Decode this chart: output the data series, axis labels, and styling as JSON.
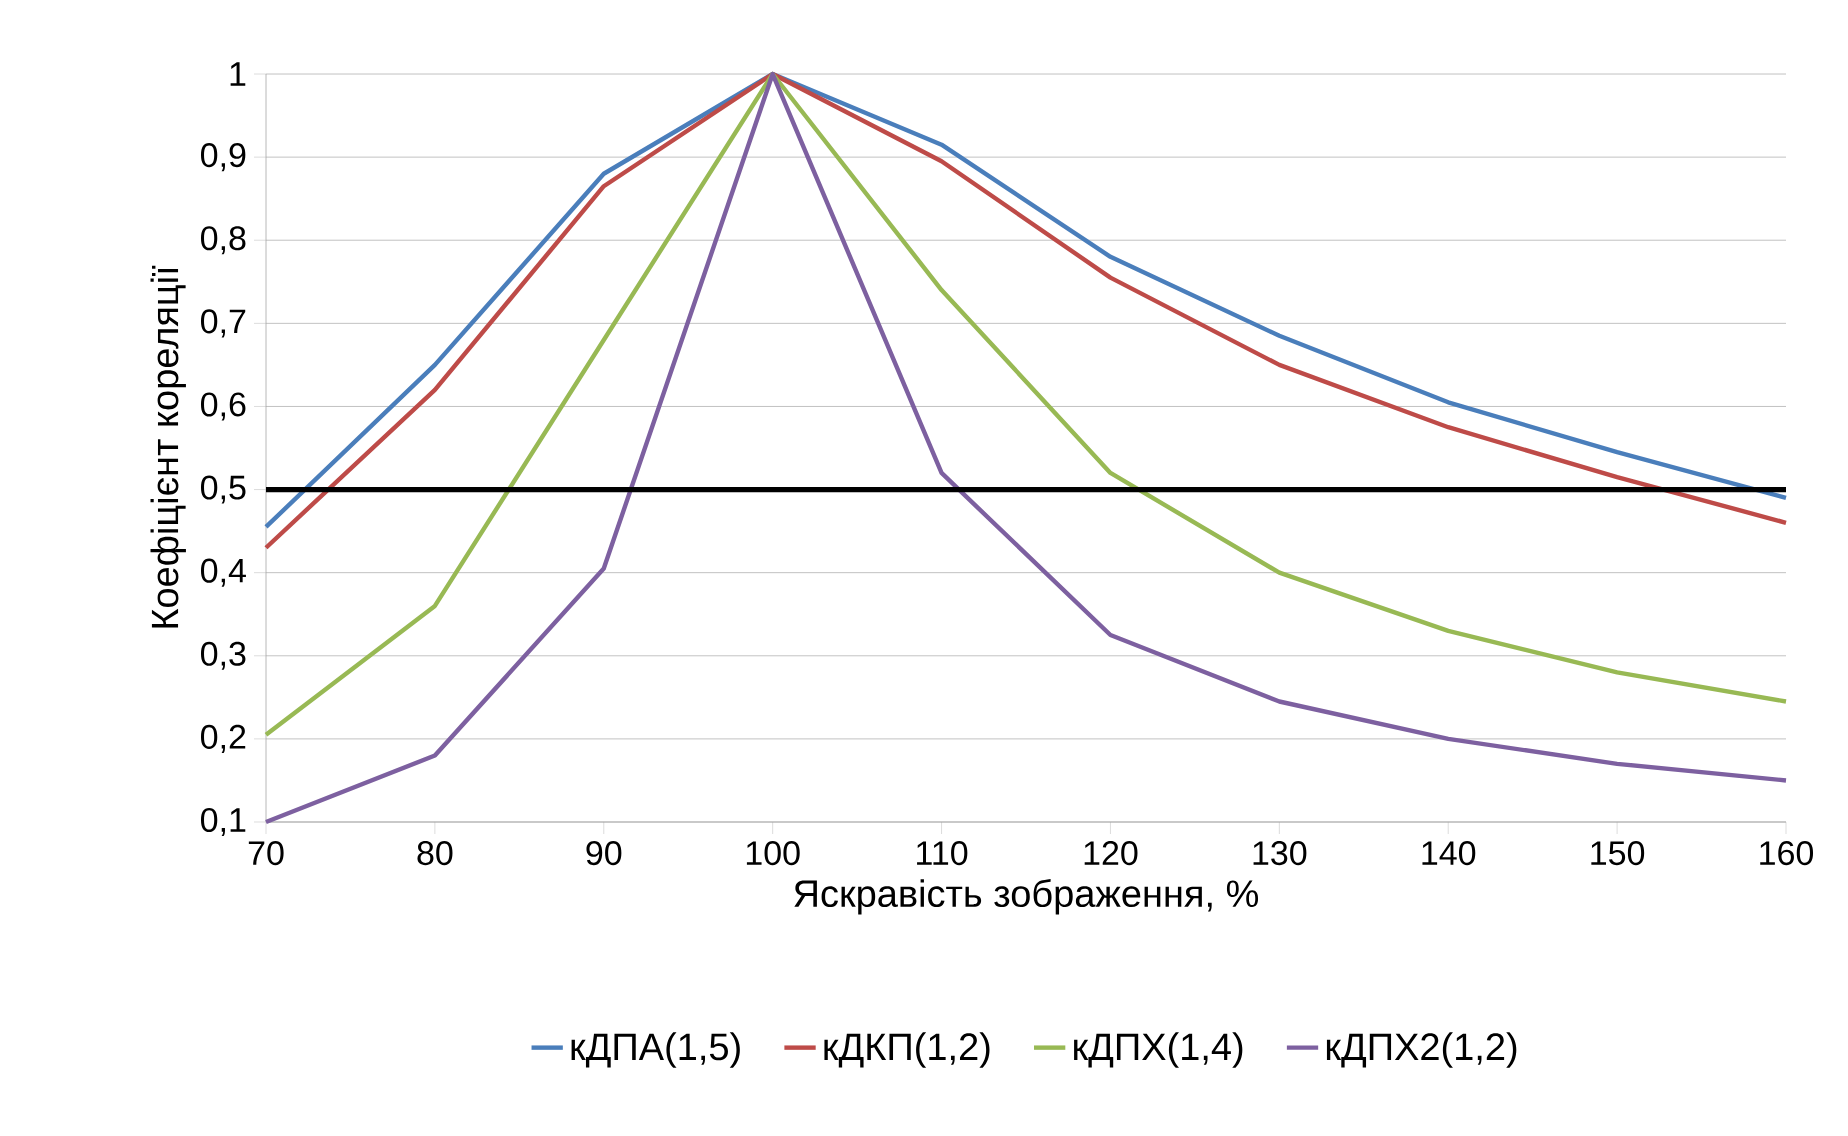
{
  "chart_data": {
    "type": "line",
    "xlabel": "Яскравість зображення, %",
    "ylabel": "Коефіцієнт кореляції",
    "x": [
      70,
      80,
      90,
      100,
      110,
      120,
      130,
      140,
      150,
      160
    ],
    "series": [
      {
        "name": "кДПА(1,5)",
        "color": "#4a7ebb",
        "values": [
          0.455,
          0.65,
          0.88,
          1,
          0.915,
          0.78,
          0.685,
          0.605,
          0.545,
          0.49
        ]
      },
      {
        "name": "кДКП(1,2)",
        "color": "#be4b48",
        "values": [
          0.43,
          0.62,
          0.865,
          1,
          0.895,
          0.755,
          0.65,
          0.575,
          0.515,
          0.46
        ]
      },
      {
        "name": "кДПХ(1,4)",
        "color": "#98b954",
        "values": [
          0.205,
          0.36,
          0.68,
          1,
          0.74,
          0.52,
          0.4,
          0.33,
          0.28,
          0.245
        ]
      },
      {
        "name": "кДПХ2(1,2)",
        "color": "#7d60a0",
        "values": [
          0.1,
          0.18,
          0.405,
          1,
          0.52,
          0.325,
          0.245,
          0.2,
          0.17,
          0.15
        ]
      }
    ],
    "xlim": [
      70,
      160
    ],
    "xticks": [
      70,
      80,
      90,
      100,
      110,
      120,
      130,
      140,
      150,
      160
    ],
    "ylim": [
      0.1,
      1
    ],
    "yticks": [
      {
        "value": 0.1,
        "label": "0,1"
      },
      {
        "value": 0.2,
        "label": "0,2"
      },
      {
        "value": 0.3,
        "label": "0,3"
      },
      {
        "value": 0.4,
        "label": "0,4"
      },
      {
        "value": 0.5,
        "label": "0,5"
      },
      {
        "value": 0.6,
        "label": "0,6"
      },
      {
        "value": 0.7,
        "label": "0,7"
      },
      {
        "value": 0.8,
        "label": "0,8"
      },
      {
        "value": 0.9,
        "label": "0,9"
      },
      {
        "value": 1,
        "label": "1"
      }
    ],
    "ref_lines": [
      {
        "axis": "y",
        "value": 0.5,
        "color": "#000000"
      }
    ],
    "grid": "y",
    "legend": "bottom",
    "marker": "none",
    "line_style": "solid"
  }
}
